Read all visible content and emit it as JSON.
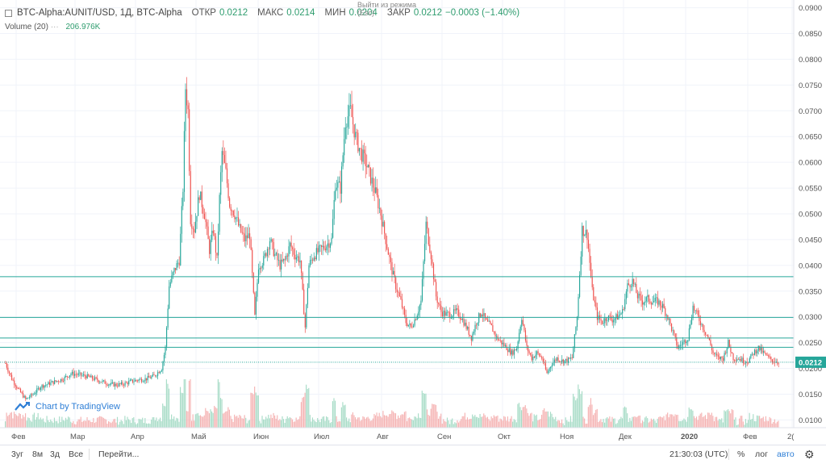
{
  "header": {
    "symbol": "BTC-Alpha:AUNIT/USD, 1Д, BTC-Alpha",
    "open_label": "ОТКР",
    "open": "0.0212",
    "high_label": "МАКС",
    "high": "0.0214",
    "low_label": "МИН",
    "low": "0.0204",
    "close_label": "ЗАКР",
    "close": "0.0212",
    "change": "−0.0003 (−1.40%)"
  },
  "volume": {
    "label": "Volume (20)",
    "dots": "···",
    "value": "206.976K"
  },
  "replay": {
    "line1": "Выйти из режима",
    "line2": "(Esc)"
  },
  "watermark": {
    "text": "Chart by TradingView"
  },
  "price_labels": [
    "0.0900",
    "0.0850",
    "0.0800",
    "0.0750",
    "0.0700",
    "0.0650",
    "0.0600",
    "0.0550",
    "0.0500",
    "0.0450",
    "0.0400",
    "0.0350",
    "0.0300",
    "0.0250",
    "0.0200",
    "0.0150",
    "0.0100"
  ],
  "current_price": "0.0212",
  "month_labels": [
    "Фев",
    "Мар",
    "Апр",
    "Май",
    "Июн",
    "Июл",
    "Авг",
    "Сен",
    "Окт",
    "Ноя",
    "Дек",
    "2020",
    "Фев",
    "2("
  ],
  "bottom": {
    "r3y": "3уг",
    "r8m": "8м",
    "r3d": "3д",
    "rall": "Все",
    "goto": "Перейти...",
    "time": "21:30:03 (UTC)",
    "pct": "%",
    "log": "лог",
    "auto": "авто"
  },
  "colors": {
    "up": "#26a69a",
    "down": "#ef5350",
    "hline": "#26a69a",
    "volup": "#a8dcc7",
    "voldown": "#f5b3b3"
  },
  "chart_data": {
    "type": "candlestick",
    "title": "BTC-Alpha:AUNIT/USD, 1Д",
    "ylim": [
      0.0085,
      0.0915
    ],
    "horizontal_lines": [
      0.0378,
      0.0299,
      0.0259,
      0.0241,
      0.0212
    ],
    "price_path": [
      [
        0,
        0.021
      ],
      [
        5,
        0.018
      ],
      [
        10,
        0.016
      ],
      [
        16,
        0.014
      ],
      [
        22,
        0.015
      ],
      [
        28,
        0.0165
      ],
      [
        34,
        0.017
      ],
      [
        40,
        0.0175
      ],
      [
        46,
        0.018
      ],
      [
        52,
        0.019
      ],
      [
        58,
        0.0188
      ],
      [
        64,
        0.0185
      ],
      [
        70,
        0.018
      ],
      [
        76,
        0.0175
      ],
      [
        82,
        0.017
      ],
      [
        88,
        0.0168
      ],
      [
        94,
        0.017
      ],
      [
        100,
        0.0175
      ],
      [
        106,
        0.0178
      ],
      [
        112,
        0.018
      ],
      [
        118,
        0.0185
      ],
      [
        124,
        0.02
      ],
      [
        127,
        0.024
      ],
      [
        130,
        0.036
      ],
      [
        134,
        0.039
      ],
      [
        138,
        0.041
      ],
      [
        141,
        0.055
      ],
      [
        143,
        0.0745
      ],
      [
        145,
        0.07
      ],
      [
        147,
        0.049
      ],
      [
        150,
        0.047
      ],
      [
        154,
        0.054
      ],
      [
        158,
        0.05
      ],
      [
        162,
        0.043
      ],
      [
        165,
        0.047
      ],
      [
        168,
        0.041
      ],
      [
        170,
        0.053
      ],
      [
        172,
        0.062
      ],
      [
        175,
        0.058
      ],
      [
        178,
        0.052
      ],
      [
        182,
        0.05
      ],
      [
        186,
        0.047
      ],
      [
        190,
        0.045
      ],
      [
        194,
        0.046
      ],
      [
        198,
        0.03
      ],
      [
        201,
        0.04
      ],
      [
        205,
        0.041
      ],
      [
        210,
        0.045
      ],
      [
        214,
        0.042
      ],
      [
        218,
        0.04
      ],
      [
        222,
        0.041
      ],
      [
        226,
        0.044
      ],
      [
        230,
        0.042
      ],
      [
        234,
        0.041
      ],
      [
        238,
        0.028
      ],
      [
        241,
        0.04
      ],
      [
        245,
        0.042
      ],
      [
        250,
        0.043
      ],
      [
        255,
        0.044
      ],
      [
        259,
        0.045
      ],
      [
        262,
        0.056
      ],
      [
        266,
        0.055
      ],
      [
        270,
        0.068
      ],
      [
        274,
        0.07
      ],
      [
        278,
        0.065
      ],
      [
        282,
        0.062
      ],
      [
        286,
        0.06
      ],
      [
        290,
        0.057
      ],
      [
        294,
        0.054
      ],
      [
        298,
        0.05
      ],
      [
        302,
        0.045
      ],
      [
        306,
        0.04
      ],
      [
        310,
        0.036
      ],
      [
        314,
        0.033
      ],
      [
        318,
        0.029
      ],
      [
        322,
        0.028
      ],
      [
        326,
        0.03
      ],
      [
        330,
        0.033
      ],
      [
        334,
        0.048
      ],
      [
        338,
        0.042
      ],
      [
        342,
        0.034
      ],
      [
        346,
        0.031
      ],
      [
        350,
        0.0305
      ],
      [
        354,
        0.0305
      ],
      [
        358,
        0.031
      ],
      [
        362,
        0.03
      ],
      [
        366,
        0.028
      ],
      [
        370,
        0.026
      ],
      [
        374,
        0.029
      ],
      [
        378,
        0.031
      ],
      [
        382,
        0.029
      ],
      [
        386,
        0.028
      ],
      [
        390,
        0.026
      ],
      [
        394,
        0.025
      ],
      [
        398,
        0.024
      ],
      [
        402,
        0.023
      ],
      [
        406,
        0.024
      ],
      [
        410,
        0.03
      ],
      [
        414,
        0.024
      ],
      [
        418,
        0.022
      ],
      [
        422,
        0.023
      ],
      [
        426,
        0.022
      ],
      [
        430,
        0.019
      ],
      [
        434,
        0.021
      ],
      [
        438,
        0.022
      ],
      [
        442,
        0.0215
      ],
      [
        446,
        0.0215
      ],
      [
        450,
        0.022
      ],
      [
        454,
        0.03
      ],
      [
        458,
        0.047
      ],
      [
        462,
        0.046
      ],
      [
        466,
        0.035
      ],
      [
        470,
        0.03
      ],
      [
        474,
        0.029
      ],
      [
        478,
        0.03
      ],
      [
        482,
        0.0295
      ],
      [
        486,
        0.03
      ],
      [
        490,
        0.031
      ],
      [
        494,
        0.036
      ],
      [
        498,
        0.037
      ],
      [
        502,
        0.034
      ],
      [
        506,
        0.033
      ],
      [
        510,
        0.0335
      ],
      [
        514,
        0.033
      ],
      [
        518,
        0.033
      ],
      [
        522,
        0.032
      ],
      [
        526,
        0.03
      ],
      [
        530,
        0.027
      ],
      [
        534,
        0.024
      ],
      [
        538,
        0.025
      ],
      [
        542,
        0.026
      ],
      [
        546,
        0.032
      ],
      [
        550,
        0.03
      ],
      [
        554,
        0.028
      ],
      [
        558,
        0.026
      ],
      [
        562,
        0.023
      ],
      [
        566,
        0.022
      ],
      [
        570,
        0.022
      ],
      [
        574,
        0.025
      ],
      [
        578,
        0.022
      ],
      [
        582,
        0.022
      ],
      [
        586,
        0.0215
      ],
      [
        590,
        0.0215
      ],
      [
        594,
        0.023
      ],
      [
        598,
        0.024
      ],
      [
        602,
        0.023
      ],
      [
        606,
        0.022
      ],
      [
        610,
        0.0215
      ],
      [
        614,
        0.0212
      ]
    ]
  }
}
